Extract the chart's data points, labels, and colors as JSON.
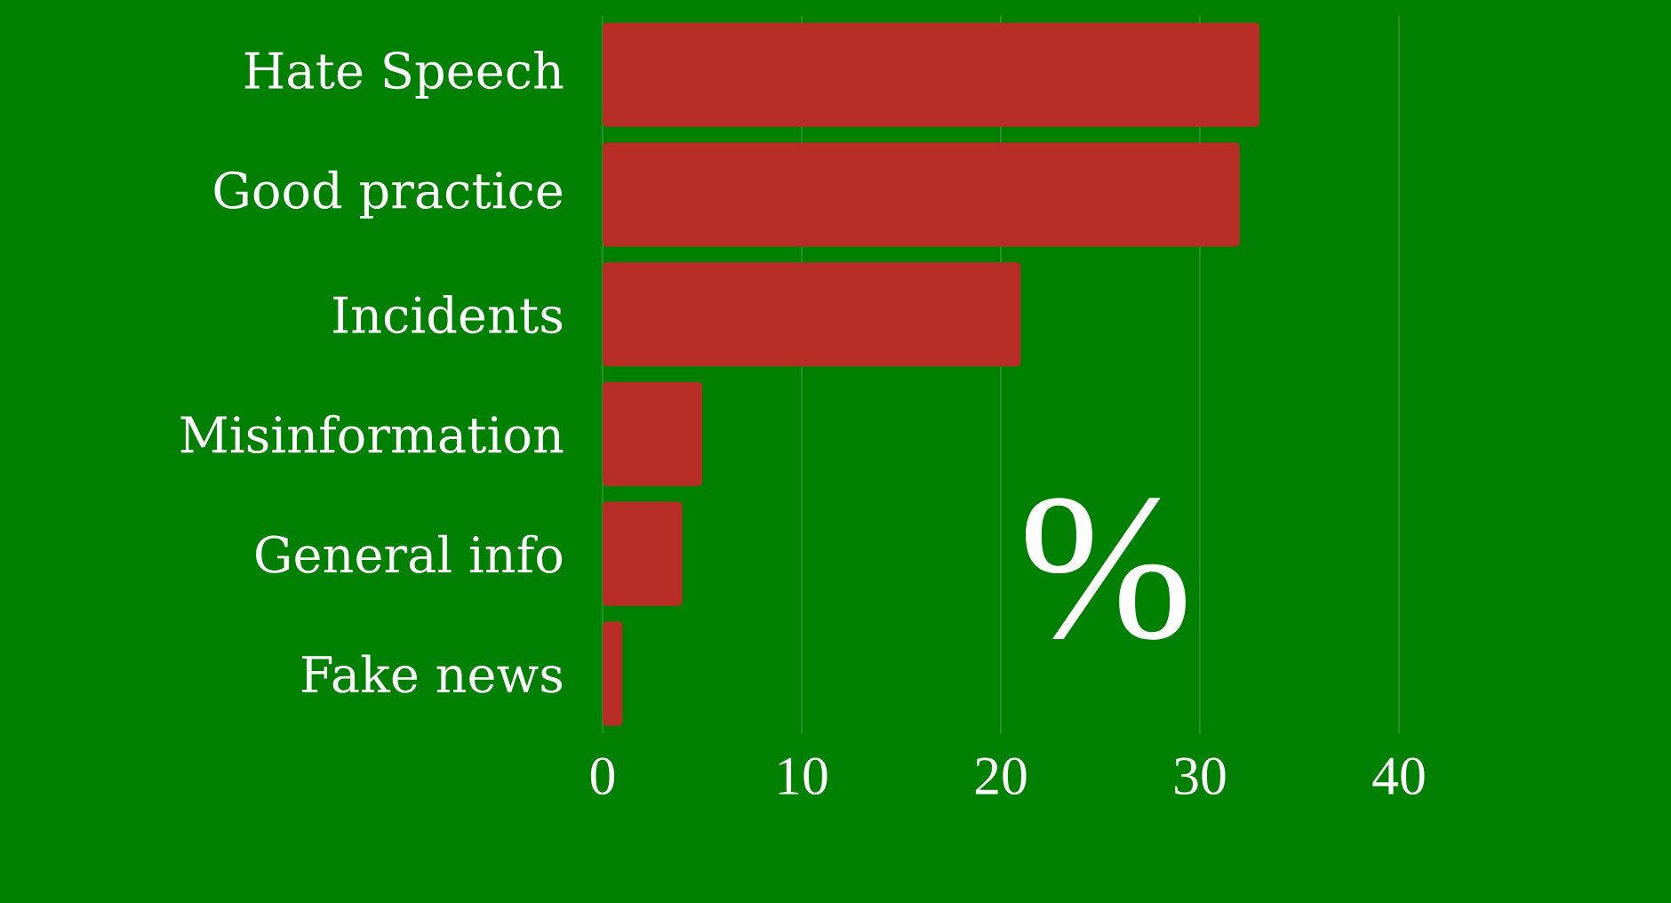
{
  "chart_data": {
    "type": "bar",
    "orientation": "horizontal",
    "categories": [
      "Hate Speech",
      "Good practice",
      "Incidents",
      "Misinformation",
      "General info",
      "Fake news"
    ],
    "values": [
      33,
      32,
      21,
      5,
      4,
      1
    ],
    "color": "#b82e26",
    "xlim": [
      0,
      40
    ],
    "xticks": [
      0,
      10,
      20,
      30,
      40
    ],
    "grid": "x",
    "annotations": [
      "%"
    ]
  }
}
